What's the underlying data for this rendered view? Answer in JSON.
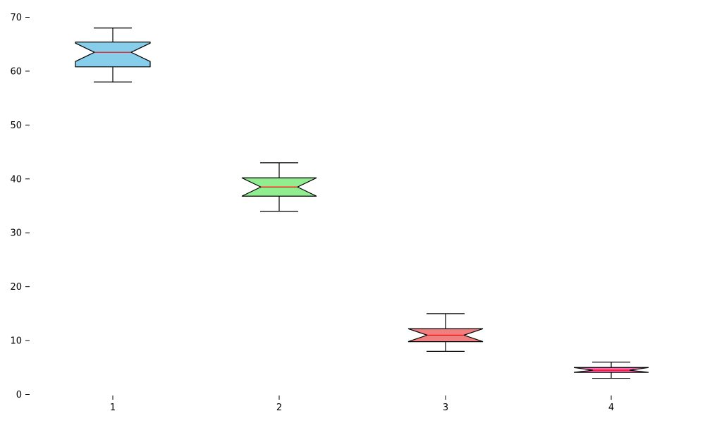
{
  "chart_data": {
    "type": "box",
    "notched": true,
    "title": "",
    "xlabel": "",
    "ylabel": "",
    "ylim": [
      0,
      72
    ],
    "y_ticks": [
      0,
      10,
      20,
      30,
      40,
      50,
      60,
      70
    ],
    "categories": [
      "1",
      "2",
      "3",
      "4"
    ],
    "grid": false,
    "boxes": [
      {
        "category": "1",
        "whisker_low": 58,
        "q1": 60.8,
        "median": 63.5,
        "q3": 65.4,
        "whisker_high": 68,
        "notch_low": 61.8,
        "notch_high": 65.2,
        "fill": "#87ceeb",
        "median_color": "#ff0000"
      },
      {
        "category": "2",
        "whisker_low": 34,
        "q1": 36.8,
        "median": 38.5,
        "q3": 40.2,
        "whisker_high": 43,
        "notch_low": 36.8,
        "notch_high": 40.2,
        "fill": "#90ee90",
        "median_color": "#ff0000"
      },
      {
        "category": "3",
        "whisker_low": 8,
        "q1": 9.8,
        "median": 11.0,
        "q3": 12.2,
        "whisker_high": 15,
        "notch_low": 9.8,
        "notch_high": 12.2,
        "fill": "#f08080",
        "median_color": "#ff0000"
      },
      {
        "category": "4",
        "whisker_low": 3,
        "q1": 4.1,
        "median": 4.5,
        "q3": 5.0,
        "whisker_high": 6,
        "notch_low": 4.1,
        "notch_high": 5.0,
        "fill": "#ff69b4",
        "median_color": "#ff0000"
      }
    ]
  }
}
